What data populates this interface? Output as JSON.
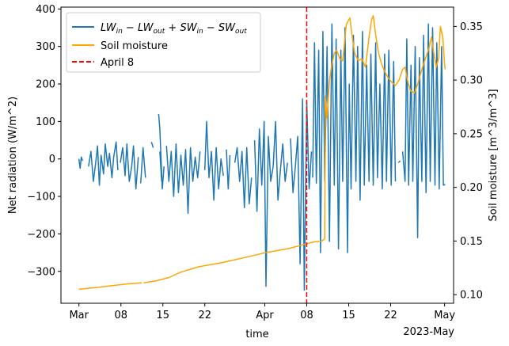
{
  "chart_data": {
    "type": "line",
    "xlabel": "time",
    "x_tick_labels": [
      "Mar",
      "08",
      "15",
      "22",
      "Apr",
      "08",
      "15",
      "22",
      "May"
    ],
    "x_tick_days": [
      0,
      7,
      14,
      21,
      31,
      38,
      45,
      52,
      61
    ],
    "x_offset_label": "2023-May",
    "xlim_days": [
      -3,
      62.5
    ],
    "x_origin_date": "2023-03-01",
    "left_axis": {
      "label": "Net radiation (W/m^2)",
      "ylim": [
        -385,
        405
      ],
      "ticks": [
        -300,
        -200,
        -100,
        0,
        100,
        200,
        300,
        400
      ]
    },
    "right_axis": {
      "label": "Soil moisture [m^3/m^3]",
      "ylim": [
        0.092,
        0.368
      ],
      "ticks": [
        0.1,
        0.15,
        0.2,
        0.25,
        0.3,
        0.35
      ],
      "tick_labels": [
        "0.10",
        "0.15",
        "0.20",
        "0.25",
        "0.30",
        "0.35"
      ]
    },
    "series": [
      {
        "name": "LW_in - LW_out + SW_in - SW_out",
        "legend": "$LW_{in} - LW_{out} + SW_{in} - SW_{out}$",
        "axis": "left",
        "color": "#1f77b4",
        "segments": [
          [
            [
              0.0,
              0
            ],
            [
              0.2,
              -25
            ],
            [
              0.4,
              5
            ],
            [
              0.6,
              -5
            ]
          ],
          [
            [
              1.6,
              -20
            ],
            [
              2.0,
              20
            ],
            [
              2.4,
              -60
            ],
            [
              2.8,
              -10
            ],
            [
              3.1,
              35
            ],
            [
              3.4,
              -70
            ],
            [
              3.7,
              10
            ],
            [
              4.1,
              -40
            ],
            [
              4.4,
              40
            ],
            [
              4.8,
              -20
            ],
            [
              5.1,
              15
            ],
            [
              5.5,
              -50
            ],
            [
              5.8,
              5
            ],
            [
              6.2,
              45
            ],
            [
              6.5,
              -30
            ]
          ],
          [
            [
              6.9,
              -10
            ],
            [
              7.3,
              30
            ],
            [
              7.7,
              -45
            ],
            [
              8.0,
              40
            ],
            [
              8.4,
              -60
            ],
            [
              8.8,
              -20
            ],
            [
              9.1,
              35
            ],
            [
              9.5,
              -80
            ],
            [
              9.9,
              5
            ]
          ],
          [
            [
              10.3,
              -65
            ],
            [
              10.7,
              30
            ],
            [
              11.1,
              -50
            ]
          ],
          [
            [
              12.1,
              45
            ],
            [
              12.4,
              30
            ]
          ],
          [
            [
              13.5,
              20
            ],
            [
              13.8,
              -60
            ]
          ],
          [
            [
              13.3,
              120
            ],
            [
              13.5,
              80
            ],
            [
              13.9,
              -80
            ],
            [
              14.2,
              -20
            ]
          ],
          [
            [
              14.6,
              35
            ],
            [
              15.0,
              -60
            ],
            [
              15.4,
              20
            ],
            [
              15.8,
              -100
            ],
            [
              16.2,
              40
            ],
            [
              16.6,
              -90
            ],
            [
              17.0,
              10
            ],
            [
              17.4,
              -70
            ],
            [
              17.8,
              25
            ],
            [
              18.2,
              -145
            ],
            [
              18.6,
              30
            ],
            [
              19.0,
              -60
            ],
            [
              19.4,
              5
            ],
            [
              19.8,
              -50
            ],
            [
              20.2,
              20
            ]
          ],
          [
            [
              21.0,
              -30
            ],
            [
              21.3,
              100
            ],
            [
              21.7,
              -50
            ],
            [
              22.1,
              20
            ],
            [
              22.5,
              -110
            ],
            [
              22.9,
              30
            ],
            [
              23.3,
              -80
            ],
            [
              23.7,
              0
            ],
            [
              24.1,
              -45
            ]
          ],
          [
            [
              24.6,
              25
            ],
            [
              24.9,
              -80
            ],
            [
              25.2,
              10
            ]
          ],
          [
            [
              26.0,
              -10
            ],
            [
              26.4,
              30
            ],
            [
              26.8,
              -60
            ],
            [
              27.2,
              20
            ],
            [
              27.6,
              -130
            ],
            [
              28.0,
              30
            ],
            [
              28.4,
              -120
            ],
            [
              28.8,
              -50
            ]
          ],
          [
            [
              29.3,
              50
            ],
            [
              29.7,
              -140
            ],
            [
              30.1,
              80
            ],
            [
              30.5,
              -70
            ],
            [
              30.9,
              100
            ],
            [
              31.2,
              -340
            ],
            [
              31.6,
              60
            ],
            [
              32.0,
              -60
            ],
            [
              32.4,
              -20
            ],
            [
              32.8,
              100
            ],
            [
              33.2,
              -110
            ],
            [
              33.6,
              -30
            ],
            [
              34.0,
              40
            ],
            [
              34.4,
              -60
            ],
            [
              34.8,
              -10
            ]
          ],
          [
            [
              35.3,
              55
            ],
            [
              35.7,
              -90
            ],
            [
              36.1,
              -20
            ],
            [
              36.5,
              60
            ],
            [
              36.9,
              -280
            ],
            [
              37.3,
              160
            ],
            [
              37.6,
              -350
            ],
            [
              38.0,
              150
            ],
            [
              38.4,
              -80
            ],
            [
              38.8,
              20
            ]
          ],
          [
            [
              39.0,
              -50
            ],
            [
              39.3,
              310
            ],
            [
              39.6,
              -65
            ],
            [
              40.0,
              290
            ],
            [
              40.3,
              -250
            ],
            [
              40.7,
              340
            ],
            [
              41.0,
              -60
            ],
            [
              41.4,
              300
            ],
            [
              41.8,
              -220
            ],
            [
              42.2,
              360
            ],
            [
              42.6,
              -70
            ],
            [
              42.9,
              320
            ],
            [
              43.3,
              -240
            ],
            [
              43.7,
              290
            ],
            [
              44.0,
              -60
            ],
            [
              44.4,
              350
            ],
            [
              44.8,
              -250
            ],
            [
              45.1,
              200
            ],
            [
              45.4,
              -80
            ],
            [
              45.8,
              330
            ],
            [
              46.2,
              -60
            ],
            [
              46.5,
              300
            ],
            [
              46.9,
              -110
            ],
            [
              47.3,
              340
            ],
            [
              47.6,
              -70
            ],
            [
              48.0,
              250
            ],
            [
              48.4,
              -60
            ],
            [
              48.7,
              280
            ],
            [
              49.1,
              -70
            ],
            [
              49.5,
              310
            ],
            [
              49.8,
              -50
            ],
            [
              50.2,
              200
            ],
            [
              50.6,
              -80
            ],
            [
              51.0,
              280
            ],
            [
              51.3,
              -60
            ],
            [
              51.7,
              290
            ],
            [
              52.1,
              -70
            ],
            [
              52.5,
              260
            ],
            [
              52.8,
              -60
            ]
          ],
          [
            [
              53.3,
              -10
            ],
            [
              53.6,
              -5
            ]
          ],
          [
            [
              54.0,
              20
            ],
            [
              54.4,
              -60
            ],
            [
              54.7,
              320
            ],
            [
              55.0,
              -70
            ],
            [
              55.4,
              250
            ],
            [
              55.7,
              -60
            ],
            [
              56.1,
              300
            ],
            [
              56.5,
              -210
            ],
            [
              56.8,
              270
            ],
            [
              57.2,
              -60
            ],
            [
              57.5,
              330
            ],
            [
              57.9,
              -90
            ],
            [
              58.3,
              360
            ],
            [
              58.6,
              -60
            ],
            [
              59.0,
              350
            ],
            [
              59.4,
              -70
            ],
            [
              59.7,
              310
            ],
            [
              60.1,
              -80
            ],
            [
              60.5,
              300
            ],
            [
              60.8,
              -70
            ],
            [
              61.1,
              -68
            ]
          ]
        ]
      },
      {
        "name": "Soil moisture",
        "legend": "Soil moisture",
        "axis": "right",
        "color": "#ffa500",
        "segments": [
          [
            [
              0,
              0.105
            ],
            [
              5,
              0.108
            ],
            [
              8,
              0.11
            ],
            [
              10.5,
              0.111
            ]
          ],
          [
            [
              10.8,
              0.111
            ],
            [
              13,
              0.113
            ],
            [
              15,
              0.116
            ],
            [
              17,
              0.121
            ],
            [
              20,
              0.126
            ],
            [
              24,
              0.13
            ],
            [
              28,
              0.135
            ],
            [
              31,
              0.139
            ],
            [
              35,
              0.143
            ],
            [
              37,
              0.146
            ],
            [
              39,
              0.149
            ],
            [
              40.5,
              0.15
            ],
            [
              41,
              0.152
            ]
          ],
          [
            [
              41,
              0.152
            ],
            [
              41.1,
              0.285
            ],
            [
              41.4,
              0.265
            ],
            [
              41.8,
              0.3
            ],
            [
              42.2,
              0.315
            ],
            [
              42.6,
              0.325
            ],
            [
              43,
              0.328
            ],
            [
              43.5,
              0.32
            ],
            [
              44,
              0.318
            ],
            [
              44.6,
              0.352
            ],
            [
              45.2,
              0.358
            ],
            [
              45.6,
              0.34
            ],
            [
              46,
              0.325
            ],
            [
              46.6,
              0.318
            ],
            [
              47.2,
              0.32
            ],
            [
              47.8,
              0.312
            ],
            [
              48.4,
              0.34
            ],
            [
              48.8,
              0.356
            ],
            [
              49.1,
              0.36
            ],
            [
              49.5,
              0.342
            ],
            [
              50,
              0.325
            ],
            [
              50.5,
              0.315
            ],
            [
              51,
              0.308
            ],
            [
              51.6,
              0.302
            ],
            [
              52.2,
              0.298
            ],
            [
              52.8,
              0.295
            ],
            [
              53.4,
              0.3
            ],
            [
              54,
              0.31
            ],
            [
              54.4,
              0.312
            ],
            [
              54.8,
              0.3
            ],
            [
              55.3,
              0.29
            ],
            [
              56,
              0.288
            ],
            [
              56.6,
              0.298
            ],
            [
              57.2,
              0.31
            ],
            [
              57.8,
              0.32
            ],
            [
              58.4,
              0.33
            ],
            [
              58.8,
              0.34
            ],
            [
              59.2,
              0.325
            ],
            [
              59.6,
              0.312
            ],
            [
              60,
              0.32
            ],
            [
              60.3,
              0.35
            ],
            [
              60.7,
              0.34
            ],
            [
              61,
              0.315
            ],
            [
              61.1,
              0.31
            ]
          ]
        ]
      }
    ],
    "vline": {
      "label": "April 8",
      "day": 38,
      "color": "#ff0000",
      "style": "dashed"
    }
  }
}
